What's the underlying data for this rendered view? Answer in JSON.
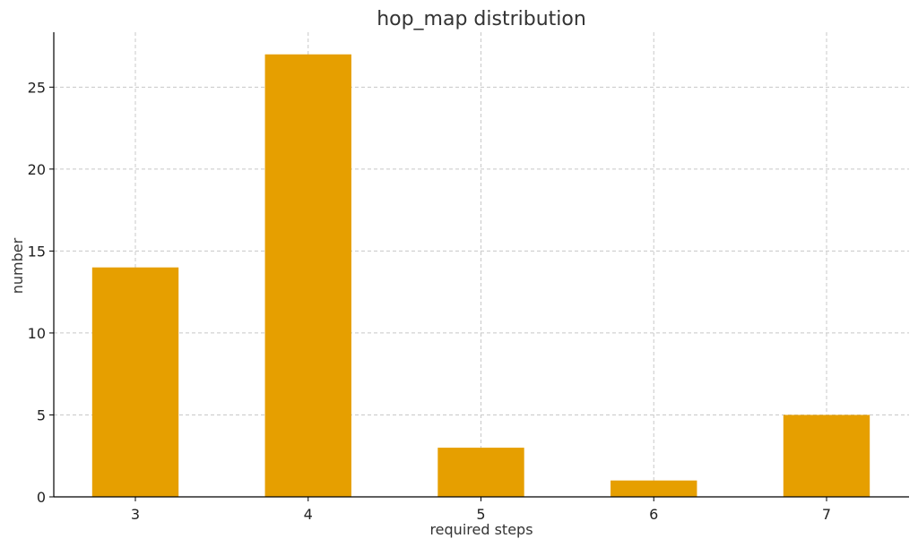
{
  "chart_data": {
    "type": "bar",
    "title": "hop_map distribution",
    "xlabel": "required steps",
    "ylabel": "number",
    "categories": [
      "3",
      "4",
      "5",
      "6",
      "7"
    ],
    "values": [
      14,
      27,
      3,
      1,
      5
    ],
    "yticks": [
      0,
      5,
      10,
      15,
      20,
      25
    ],
    "ylim": [
      0,
      28.35
    ],
    "grid": true,
    "legend": "none",
    "bar_color": "#E69F00",
    "grid_color": "#c8c8c8"
  }
}
